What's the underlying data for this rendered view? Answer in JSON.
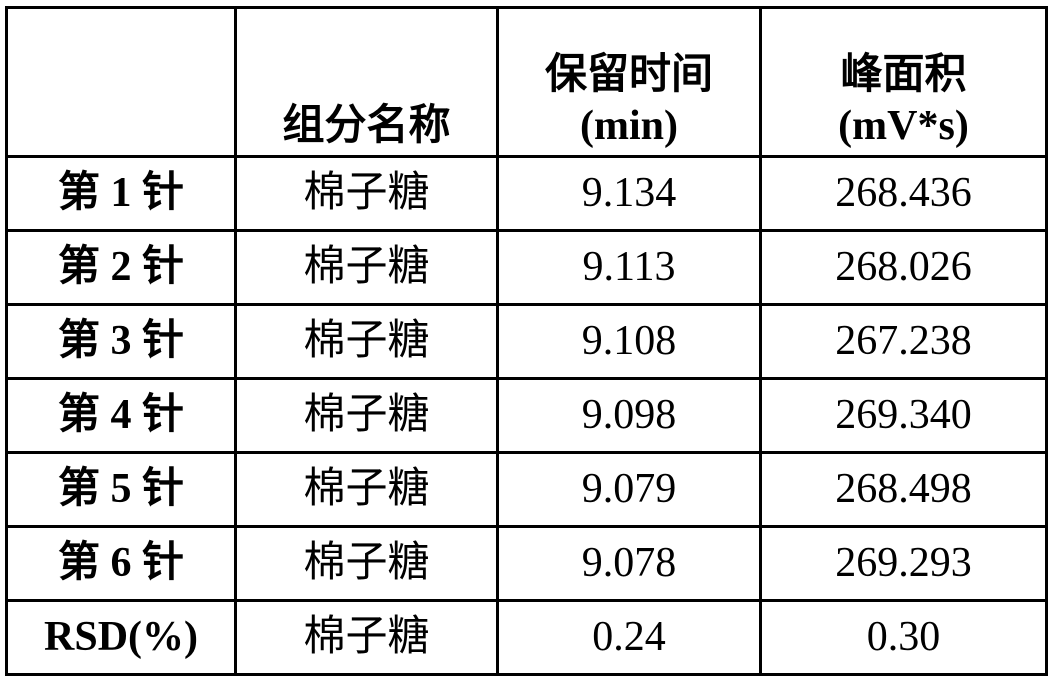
{
  "headers": [
    "",
    "组分名称",
    "保留时间",
    "(min)",
    "峰面积",
    "(mV*s)"
  ],
  "rows": [
    {
      "label": "第 1 针",
      "component": "棉子糖",
      "retention_time": "9.134",
      "peak_area": "268.436"
    },
    {
      "label": "第 2 针",
      "component": "棉子糖",
      "retention_time": "9.113",
      "peak_area": "268.026"
    },
    {
      "label": "第 3 针",
      "component": "棉子糖",
      "retention_time": "9.108",
      "peak_area": "267.238"
    },
    {
      "label": "第 4 针",
      "component": "棉子糖",
      "retention_time": "9.098",
      "peak_area": "269.340"
    },
    {
      "label": "第 5 针",
      "component": "棉子糖",
      "retention_time": "9.079",
      "peak_area": "268.498"
    },
    {
      "label": "第 6 针",
      "component": "棉子糖",
      "retention_time": "9.078",
      "peak_area": "269.293"
    },
    {
      "label": "RSD(%)",
      "component": "棉子糖",
      "retention_time": "0.24",
      "peak_area": "0.30"
    }
  ]
}
